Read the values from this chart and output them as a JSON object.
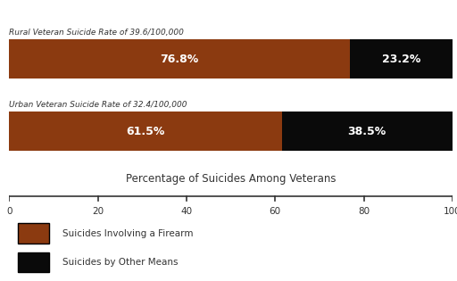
{
  "bars": [
    {
      "label": "Rural Veteran Suicide Rate of 39.6/100,000",
      "firearm_pct": 76.8,
      "other_pct": 23.2
    },
    {
      "label": "Urban Veteran Suicide Rate of 32.4/100,000",
      "firearm_pct": 61.5,
      "other_pct": 38.5
    }
  ],
  "firearm_color": "#8B3A10",
  "other_color": "#0a0a0a",
  "xlabel": "Percentage of Suicides Among Veterans",
  "xticks": [
    0,
    20,
    40,
    60,
    80,
    100
  ],
  "legend_firearm": "Suicides Involving a Firearm",
  "legend_other": "Suicides by Other Means",
  "firearm_text_color": "#FFFFFF",
  "other_text_color": "#FFFFFF",
  "bar_text_fontsize": 9,
  "xlabel_fontsize": 8.5,
  "tick_fontsize": 7.5,
  "legend_fontsize": 7.5,
  "title_fontsize": 6.5,
  "background_color": "#FFFFFF",
  "text_color": "#333333"
}
